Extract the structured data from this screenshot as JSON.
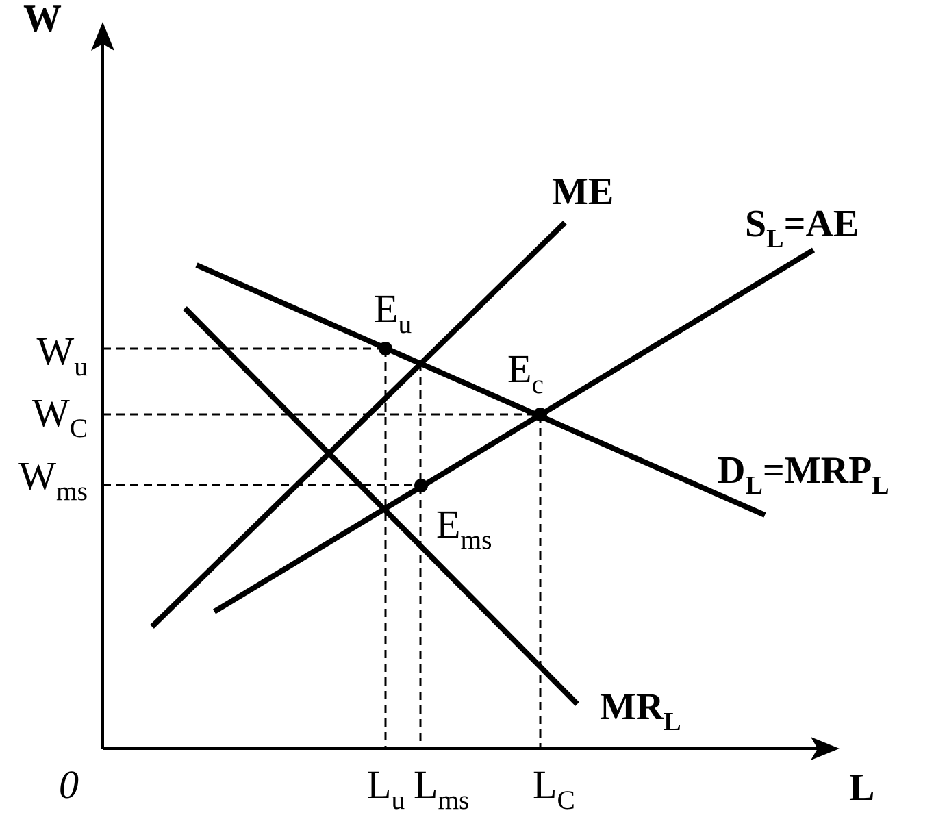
{
  "axes": {
    "y_label": "W",
    "x_label": "L",
    "origin": "0"
  },
  "curves": [
    {
      "label": [
        {
          "text": "ME"
        }
      ]
    },
    {
      "label": [
        {
          "text": "S"
        },
        {
          "text": "L",
          "sub": true
        },
        {
          "text": "=AE"
        }
      ]
    },
    {
      "label": [
        {
          "text": "D"
        },
        {
          "text": "L",
          "sub": true
        },
        {
          "text": "=MRP"
        },
        {
          "text": "L",
          "sub": true
        }
      ]
    },
    {
      "label": [
        {
          "text": "MR"
        },
        {
          "text": "L",
          "sub": true
        }
      ]
    }
  ],
  "points": [
    {
      "label": [
        {
          "text": "E"
        },
        {
          "text": "u",
          "sub": true
        }
      ]
    },
    {
      "label": [
        {
          "text": "E"
        },
        {
          "text": "c",
          "sub": true
        }
      ]
    },
    {
      "label": [
        {
          "text": "E"
        },
        {
          "text": "ms",
          "sub": true
        }
      ]
    }
  ],
  "wages": [
    {
      "label": [
        {
          "text": "W"
        },
        {
          "text": "u",
          "sub": true
        }
      ]
    },
    {
      "label": [
        {
          "text": "W"
        },
        {
          "text": "C",
          "sub": true
        }
      ]
    },
    {
      "label": [
        {
          "text": "W"
        },
        {
          "text": "ms",
          "sub": true
        }
      ]
    }
  ],
  "quantities": [
    {
      "label": [
        {
          "text": "L"
        },
        {
          "text": "u",
          "sub": true
        }
      ]
    },
    {
      "label": [
        {
          "text": "L"
        },
        {
          "text": "ms",
          "sub": true
        }
      ]
    },
    {
      "label": [
        {
          "text": "L"
        },
        {
          "text": "C",
          "sub": true
        }
      ]
    }
  ]
}
